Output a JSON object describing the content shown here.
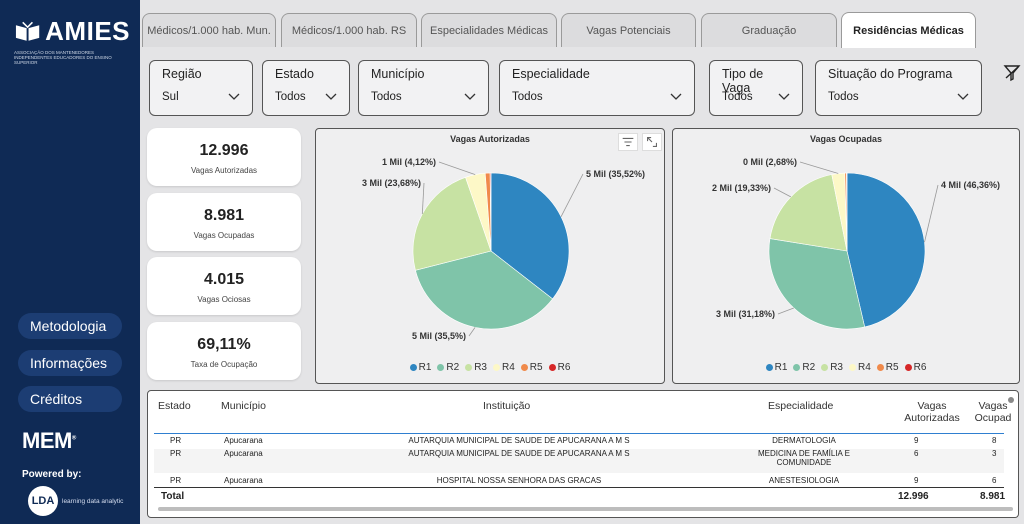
{
  "brand": {
    "name": "AMIES",
    "subtitle": "ASSOCIAÇÃO DOS MANTENEDORES INDEPENDENTES EDUCADORES DO ENSINO SUPERIOR",
    "mem": "MEM",
    "powered": "Powered by:",
    "lda_mark": "LDA",
    "lda_text": "learning data analytic"
  },
  "sidebar": {
    "items": [
      {
        "label": "Metodologia"
      },
      {
        "label": "Informações"
      },
      {
        "label": "Créditos"
      }
    ]
  },
  "tabs": [
    {
      "label": "Médicos/1.000 hab. Mun."
    },
    {
      "label": "Médicos/1.000 hab. RS"
    },
    {
      "label": "Especialidades Médicas"
    },
    {
      "label": "Vagas Potenciais"
    },
    {
      "label": "Graduação"
    },
    {
      "label": "Residências Médicas",
      "active": true
    }
  ],
  "filters": {
    "regiao": {
      "label": "Região",
      "value": "Sul"
    },
    "estado": {
      "label": "Estado",
      "value": "Todos"
    },
    "municipio": {
      "label": "Município",
      "value": "Todos"
    },
    "especialidade": {
      "label": "Especialidade",
      "value": "Todos"
    },
    "tipo_vaga": {
      "label": "Tipo de Vaga",
      "value": "Todos"
    },
    "situacao": {
      "label": "Situação do Programa",
      "value": "Todos"
    }
  },
  "kpis": [
    {
      "value": "12.996",
      "label": "Vagas Autorizadas"
    },
    {
      "value": "8.981",
      "label": "Vagas Ocupadas"
    },
    {
      "value": "4.015",
      "label": "Vagas Ociosas"
    },
    {
      "value": "69,11%",
      "label": "Taxa de Ocupação"
    }
  ],
  "colors": {
    "R1": "#2e86c1",
    "R2": "#7fc4a9",
    "R3": "#c7e2a3",
    "R4": "#fdf8c7",
    "R5": "#f08a4b",
    "R6": "#d62728"
  },
  "chart_data": [
    {
      "type": "pie",
      "title": "Vagas Autorizadas",
      "categories": [
        "R1",
        "R2",
        "R3",
        "R4",
        "R5",
        "R6"
      ],
      "values": [
        35.52,
        35.5,
        23.68,
        4.12,
        1.0,
        0.18
      ],
      "labels": [
        "5 Mil (35,52%)",
        "5 Mil (35,5%)",
        "3 Mil (23,68%)",
        "1 Mil (4,12%)"
      ],
      "legend": [
        "R1",
        "R2",
        "R3",
        "R4",
        "R5",
        "R6"
      ],
      "legend_position": "bottom"
    },
    {
      "type": "pie",
      "title": "Vagas Ocupadas",
      "categories": [
        "R1",
        "R2",
        "R3",
        "R4",
        "R5",
        "R6"
      ],
      "values": [
        46.36,
        31.18,
        19.33,
        2.68,
        0.35,
        0.1
      ],
      "labels": [
        "4 Mil (46,36%)",
        "3 Mil (31,18%)",
        "2 Mil (19,33%)",
        "0 Mil (2,68%)"
      ],
      "legend": [
        "R1",
        "R2",
        "R3",
        "R4",
        "R5",
        "R6"
      ],
      "legend_position": "bottom"
    }
  ],
  "table": {
    "headers": {
      "estado": "Estado",
      "municipio": "Município",
      "instituicao": "Instituição",
      "especialidade": "Especialidade",
      "autorizadas_1": "Vagas",
      "autorizadas_2": "Autorizadas",
      "ocupadas_1": "Vagas",
      "ocupadas_2": "Ocupad"
    },
    "rows": [
      {
        "estado": "PR",
        "municipio": "Apucarana",
        "instituicao": "AUTARQUIA MUNICIPAL DE SAUDE DE APUCARANA A M S",
        "especialidade": "DERMATOLOGIA",
        "esp2": "",
        "autorizadas": "9",
        "ocupadas": "8"
      },
      {
        "estado": "PR",
        "municipio": "Apucarana",
        "instituicao": "AUTARQUIA MUNICIPAL DE SAUDE DE APUCARANA A M S",
        "especialidade": "MEDICINA DE FAMÍLIA E",
        "esp2": "COMUNIDADE",
        "autorizadas": "6",
        "ocupadas": "3"
      },
      {
        "estado": "PR",
        "municipio": "Apucarana",
        "instituicao": "HOSPITAL NOSSA SENHORA DAS GRACAS",
        "especialidade": "ANESTESIOLOGIA",
        "esp2": "",
        "autorizadas": "9",
        "ocupadas": "6"
      }
    ],
    "total": {
      "label": "Total",
      "autorizadas": "12.996",
      "ocupadas": "8.981"
    }
  }
}
